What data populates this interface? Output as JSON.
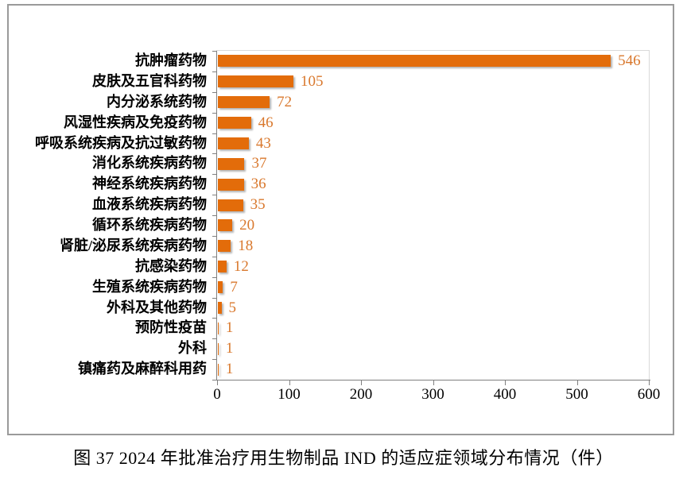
{
  "figure": {
    "caption": "图 37  2024 年批准治疗用生物制品 IND 的适应症领域分布情况（件）"
  },
  "colors": {
    "bar_fill": "#E36C0A",
    "value_label": "#D9782D",
    "axis_line": "#808080",
    "plot_border": "#D9D9D9",
    "frame_border": "#9A9A9A",
    "label_text": "#000000"
  },
  "chart_data": {
    "type": "bar",
    "orientation": "horizontal",
    "title": "",
    "xlabel": "",
    "ylabel": "",
    "categories": [
      "抗肿瘤药物",
      "皮肤及五官科药物",
      "内分泌系统药物",
      "风湿性疾病及免疫药物",
      "呼吸系统疾病及抗过敏药物",
      "消化系统疾病药物",
      "神经系统疾病药物",
      "血液系统疾病药物",
      "循环系统疾病药物",
      "肾脏/泌尿系统疾病药物",
      "抗感染药物",
      "生殖系统疾病药物",
      "外科及其他药物",
      "预防性疫苗",
      "外科",
      "镇痛药及麻醉科用药"
    ],
    "values": [
      546,
      105,
      72,
      46,
      43,
      37,
      36,
      35,
      20,
      18,
      12,
      7,
      5,
      1,
      1,
      1
    ],
    "xlim": [
      0,
      600
    ],
    "x_ticks": [
      0,
      100,
      200,
      300,
      400,
      500,
      600
    ],
    "grid": false,
    "legend": "none",
    "data_labels": true
  }
}
